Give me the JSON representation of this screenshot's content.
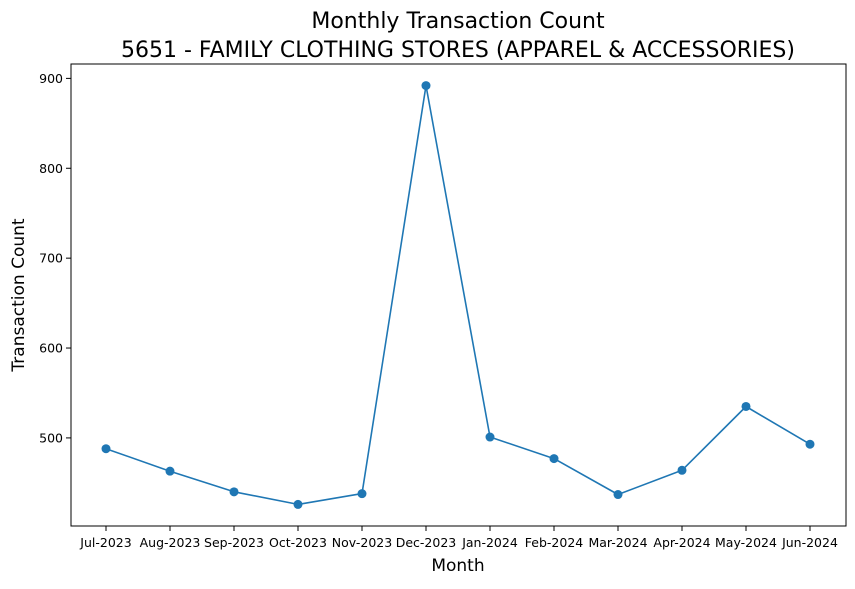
{
  "chart_data": {
    "type": "line",
    "title": "Monthly Transaction Count",
    "subtitle": "5651 - FAMILY CLOTHING STORES (APPAREL & ACCESSORIES)",
    "xlabel": "Month",
    "ylabel": "Transaction Count",
    "categories": [
      "Jul-2023",
      "Aug-2023",
      "Sep-2023",
      "Oct-2023",
      "Nov-2023",
      "Dec-2023",
      "Jan-2024",
      "Feb-2024",
      "Mar-2024",
      "Apr-2024",
      "May-2024",
      "Jun-2024"
    ],
    "series": [
      {
        "values": [
          488,
          463,
          440,
          426,
          438,
          892,
          501,
          477,
          437,
          464,
          535,
          493
        ],
        "color": "#1f77b4",
        "marker": "circle"
      }
    ],
    "ylim": [
      402,
      916
    ],
    "yticks": [
      500,
      600,
      700,
      800,
      900
    ],
    "grid": false,
    "legend": "none"
  }
}
